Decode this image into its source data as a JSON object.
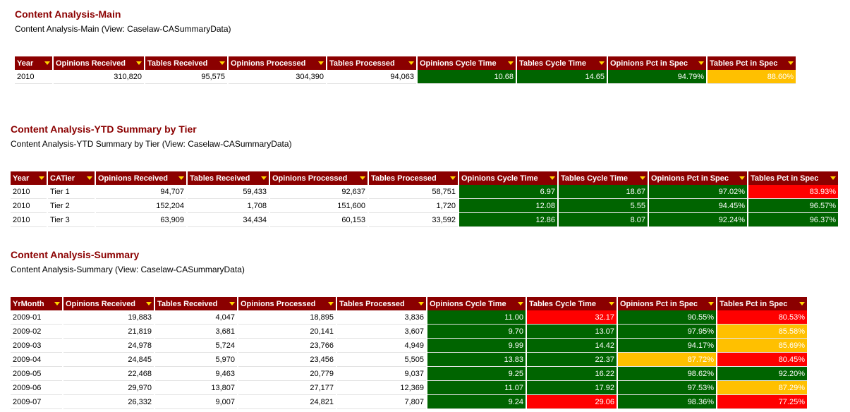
{
  "colors": {
    "header_bg": "#8b0000",
    "title": "#8b0000",
    "green": "#006400",
    "red": "#ff0000",
    "yellow": "#ffc000",
    "dropdown_arrow": "#ffd700"
  },
  "main": {
    "title": "Content Analysis-Main",
    "subtitle": "Content Analysis-Main (View: Caselaw-CASummaryData)",
    "columns": [
      "Year",
      "Opinions Received",
      "Tables Received",
      "Opinions Processed",
      "Tables Processed",
      "Opinions Cycle Time",
      "Tables Cycle Time",
      "Opinions Pct in Spec",
      "Tables Pct in Spec"
    ],
    "rows": [
      [
        "2010",
        "310,820",
        "95,575",
        "304,390",
        "94,063",
        "10.68",
        "14.65",
        "94.79%",
        "88.60%"
      ]
    ],
    "status": [
      [
        "",
        "",
        "",
        "",
        "",
        "green",
        "green",
        "green",
        "yellow"
      ]
    ]
  },
  "ytd": {
    "title": "Content Analysis-YTD Summary by Tier",
    "subtitle": "Content Analysis-YTD Summary by Tier (View: Caselaw-CASummaryData)",
    "columns": [
      "Year",
      "CATier",
      "Opinions Received",
      "Tables Received",
      "Opinions Processed",
      "Tables Processed",
      "Opinions Cycle Time",
      "Tables Cycle Time",
      "Opinions Pct in Spec",
      "Tables Pct in Spec"
    ],
    "rows": [
      [
        "2010",
        "Tier 1",
        "94,707",
        "59,433",
        "92,637",
        "58,751",
        "6.97",
        "18.67",
        "97.02%",
        "83.93%"
      ],
      [
        "2010",
        "Tier 2",
        "152,204",
        "1,708",
        "151,600",
        "1,720",
        "12.08",
        "5.55",
        "94.45%",
        "96.57%"
      ],
      [
        "2010",
        "Tier 3",
        "63,909",
        "34,434",
        "60,153",
        "33,592",
        "12.86",
        "8.07",
        "92.24%",
        "96.37%"
      ]
    ],
    "status": [
      [
        "",
        "",
        "",
        "",
        "",
        "",
        "green",
        "green",
        "green",
        "red"
      ],
      [
        "",
        "",
        "",
        "",
        "",
        "",
        "green",
        "green",
        "green",
        "green"
      ],
      [
        "",
        "",
        "",
        "",
        "",
        "",
        "green",
        "green",
        "green",
        "green"
      ]
    ]
  },
  "summary": {
    "title": "Content Analysis-Summary",
    "subtitle": "Content Analysis-Summary (View: Caselaw-CASummaryData)",
    "columns": [
      "YrMonth",
      "Opinions Received",
      "Tables Received",
      "Opinions Processed",
      "Tables Processed",
      "Opinions Cycle Time",
      "Tables Cycle Time",
      "Opinions Pct in Spec",
      "Tables Pct in Spec"
    ],
    "rows": [
      [
        "2009-01",
        "19,883",
        "4,047",
        "18,895",
        "3,836",
        "11.00",
        "32.17",
        "90.55%",
        "80.53%"
      ],
      [
        "2009-02",
        "21,819",
        "3,681",
        "20,141",
        "3,607",
        "9.70",
        "13.07",
        "97.95%",
        "85.58%"
      ],
      [
        "2009-03",
        "24,978",
        "5,724",
        "23,766",
        "4,949",
        "9.99",
        "14.42",
        "94.17%",
        "85.69%"
      ],
      [
        "2009-04",
        "24,845",
        "5,970",
        "23,456",
        "5,505",
        "13.83",
        "22.37",
        "87.72%",
        "80.45%"
      ],
      [
        "2009-05",
        "22,468",
        "9,463",
        "20,779",
        "9,037",
        "9.25",
        "16.22",
        "98.62%",
        "92.20%"
      ],
      [
        "2009-06",
        "29,970",
        "13,807",
        "27,177",
        "12,369",
        "11.07",
        "17.92",
        "97.53%",
        "87.29%"
      ],
      [
        "2009-07",
        "26,332",
        "9,007",
        "24,821",
        "7,807",
        "9.24",
        "29.06",
        "98.36%",
        "77.25%"
      ]
    ],
    "status": [
      [
        "",
        "",
        "",
        "",
        "",
        "green",
        "red",
        "green",
        "red"
      ],
      [
        "",
        "",
        "",
        "",
        "",
        "green",
        "green",
        "green",
        "yellow"
      ],
      [
        "",
        "",
        "",
        "",
        "",
        "green",
        "green",
        "green",
        "yellow"
      ],
      [
        "",
        "",
        "",
        "",
        "",
        "green",
        "green",
        "yellow",
        "red"
      ],
      [
        "",
        "",
        "",
        "",
        "",
        "green",
        "green",
        "green",
        "green"
      ],
      [
        "",
        "",
        "",
        "",
        "",
        "green",
        "green",
        "green",
        "yellow"
      ],
      [
        "",
        "",
        "",
        "",
        "",
        "green",
        "red",
        "green",
        "red"
      ]
    ]
  }
}
